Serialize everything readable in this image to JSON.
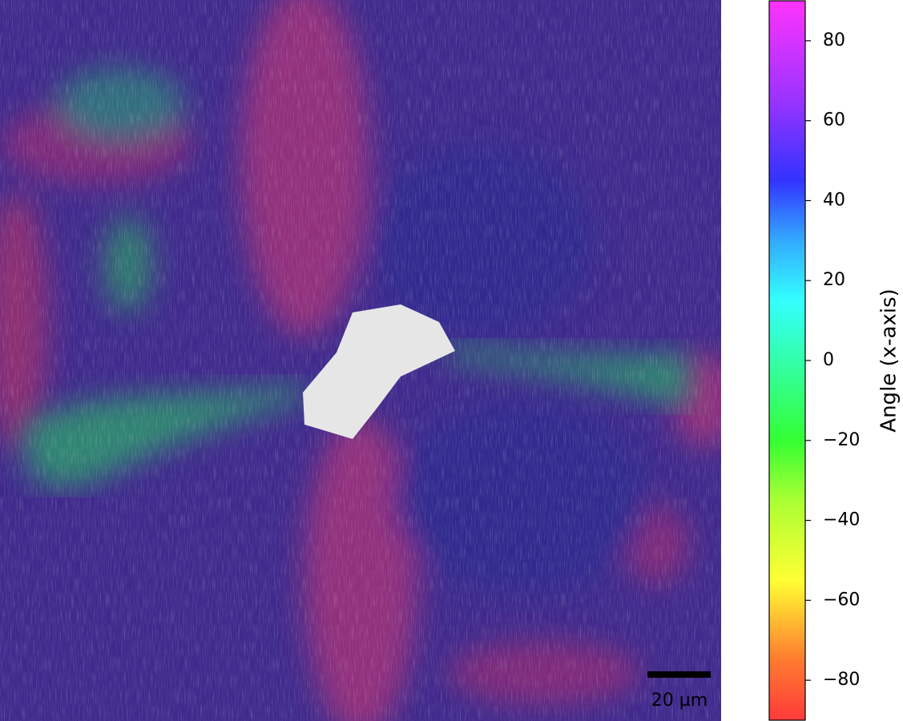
{
  "image": {
    "scalebar": {
      "label": "20 µm"
    }
  },
  "colorbar": {
    "label": "Angle (x-axis)",
    "lim": [
      -90,
      90
    ],
    "ticks": [
      {
        "value": -80,
        "label": "−80"
      },
      {
        "value": -60,
        "label": "−60"
      },
      {
        "value": -40,
        "label": "−40"
      },
      {
        "value": -20,
        "label": "−20"
      },
      0,
      20,
      40,
      60,
      80
    ],
    "colormap": [
      {
        "value": -90,
        "color": "#ff3a3a"
      },
      {
        "value": -75,
        "color": "#ff7a30"
      },
      {
        "value": -55,
        "color": "#ffff33"
      },
      {
        "value": -35,
        "color": "#aaff33"
      },
      {
        "value": -20,
        "color": "#33ff33"
      },
      {
        "value": 0,
        "color": "#33ffaa"
      },
      {
        "value": 15,
        "color": "#33ffff"
      },
      {
        "value": 30,
        "color": "#33aaff"
      },
      {
        "value": 45,
        "color": "#3333ff"
      },
      {
        "value": 65,
        "color": "#9933ff"
      },
      {
        "value": 90,
        "color": "#ff33ff"
      }
    ]
  }
}
